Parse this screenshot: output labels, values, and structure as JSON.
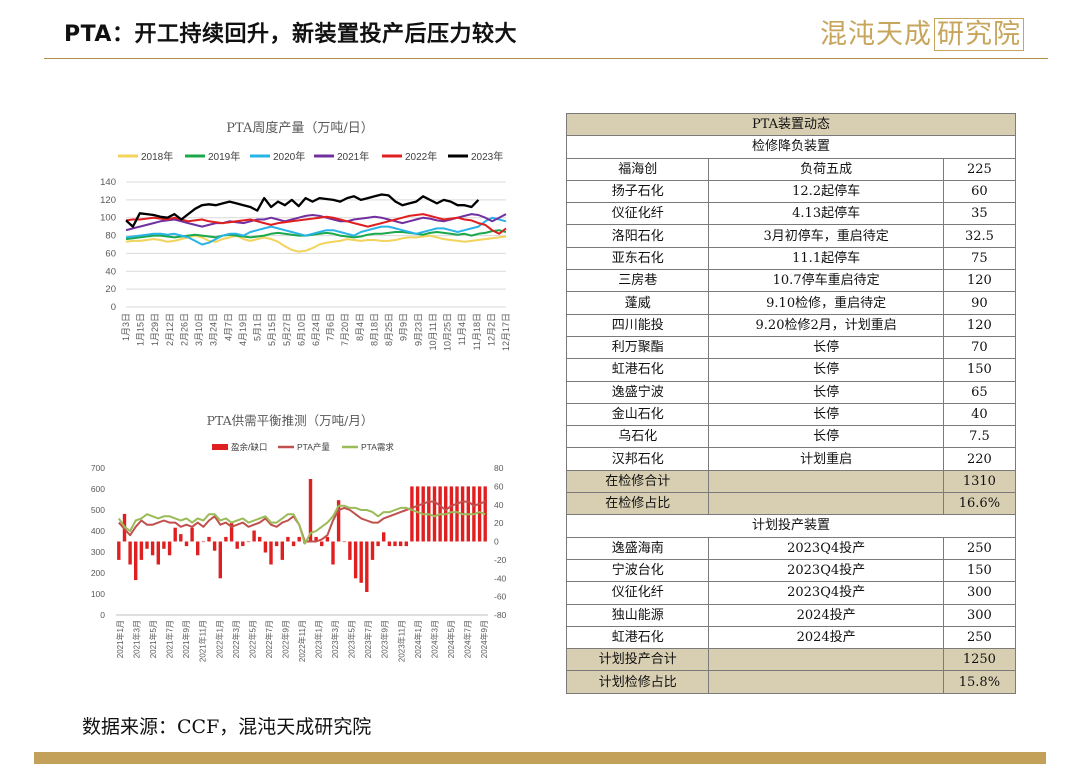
{
  "header": {
    "title": "PTA：开工持续回升，新装置投产后压力较大",
    "logo_text": "混沌天成",
    "logo_box_text": "研究院"
  },
  "source": "数据来源：CCF，混沌天成研究院",
  "colors": {
    "gold": "#c4a15a",
    "y2018": "#f2d35b",
    "y2019": "#1aa84a",
    "y2020": "#2ab3e6",
    "y2021": "#7030a0",
    "y2022": "#e02020",
    "y2023": "#000000",
    "bar": "#e02020",
    "prod": "#c0504d",
    "demand": "#9bbb59"
  },
  "chart_data": [
    {
      "type": "line",
      "title": "PTA周度产量（万吨/日）",
      "ylim": [
        0,
        140
      ],
      "yticks": [
        0,
        20,
        40,
        60,
        80,
        100,
        120,
        140
      ],
      "xticks": [
        "1月3日",
        "1月15日",
        "1月29日",
        "2月12日",
        "2月26日",
        "3月10日",
        "3月24日",
        "4月7日",
        "4月19日",
        "5月1日",
        "5月15日",
        "5月27日",
        "6月10日",
        "6月24日",
        "7月6日",
        "7月20日",
        "8月4日",
        "8月18日",
        "8月25日",
        "9月9日",
        "9月23日",
        "10月11日",
        "10月25日",
        "11月4日",
        "11月18日",
        "12月2日",
        "12月17日"
      ],
      "series": [
        {
          "name": "2018年",
          "values": [
            73,
            74,
            74,
            75,
            76,
            75,
            73,
            74,
            76,
            78,
            80,
            78,
            74,
            73,
            76,
            78,
            80,
            76,
            74,
            76,
            78,
            76,
            73,
            68,
            64,
            62,
            63,
            66,
            70,
            72,
            73,
            74,
            76,
            75,
            74,
            75,
            75,
            74,
            74,
            75,
            77,
            78,
            78,
            79,
            80,
            78,
            76,
            75,
            74,
            73,
            74,
            75,
            76,
            77,
            78,
            79
          ]
        },
        {
          "name": "2019年",
          "values": [
            76,
            77,
            78,
            79,
            80,
            80,
            79,
            78,
            79,
            80,
            81,
            80,
            79,
            78,
            80,
            81,
            80,
            79,
            78,
            79,
            80,
            82,
            83,
            82,
            81,
            80,
            80,
            81,
            82,
            83,
            82,
            80,
            79,
            78,
            79,
            81,
            82,
            82,
            83,
            84,
            84,
            83,
            82,
            81,
            83,
            84,
            83,
            82,
            81,
            82,
            80,
            82,
            83,
            85,
            86,
            84
          ]
        },
        {
          "name": "2020年",
          "values": [
            78,
            79,
            80,
            81,
            82,
            82,
            81,
            82,
            80,
            78,
            74,
            70,
            72,
            76,
            80,
            82,
            82,
            80,
            84,
            86,
            88,
            90,
            88,
            86,
            84,
            82,
            80,
            82,
            84,
            86,
            86,
            84,
            82,
            80,
            84,
            86,
            88,
            90,
            90,
            88,
            86,
            84,
            82,
            84,
            86,
            88,
            88,
            86,
            84,
            86,
            88,
            90,
            96,
            100,
            98,
            96
          ]
        },
        {
          "name": "2021年",
          "values": [
            86,
            88,
            90,
            92,
            94,
            96,
            97,
            98,
            96,
            94,
            92,
            90,
            92,
            94,
            94,
            96,
            95,
            94,
            96,
            98,
            98,
            100,
            98,
            96,
            98,
            100,
            102,
            103,
            102,
            100,
            98,
            96,
            96,
            98,
            99,
            100,
            101,
            100,
            98,
            96,
            94,
            96,
            98,
            100,
            99,
            97,
            96,
            98,
            100,
            102,
            104,
            103,
            100,
            96,
            100,
            104
          ]
        },
        {
          "name": "2022年",
          "values": [
            97,
            98,
            98,
            99,
            100,
            99,
            98,
            100,
            98,
            96,
            97,
            98,
            96,
            95,
            94,
            95,
            96,
            97,
            98,
            96,
            94,
            92,
            94,
            95,
            96,
            97,
            98,
            99,
            100,
            101,
            100,
            98,
            96,
            94,
            92,
            90,
            92,
            94,
            96,
            98,
            100,
            102,
            103,
            104,
            102,
            100,
            98,
            99,
            100,
            98,
            97,
            94,
            92,
            86,
            82,
            88
          ]
        },
        {
          "name": "2023年",
          "values": [
            97,
            90,
            105,
            104,
            103,
            101,
            100,
            104,
            98,
            104,
            110,
            114,
            115,
            114,
            116,
            118,
            116,
            114,
            112,
            108,
            122,
            112,
            118,
            114,
            120,
            113,
            122,
            118,
            122,
            121,
            120,
            118,
            122,
            124,
            120,
            122,
            124,
            126,
            125,
            118,
            114,
            116,
            118,
            124,
            120,
            116,
            120,
            118,
            114,
            114,
            112,
            120
          ]
        }
      ]
    },
    {
      "type": "bar",
      "title": "PTA供需平衡推测（万吨/月）",
      "ylim": [
        0,
        700
      ],
      "y2lim": [
        -80,
        80
      ],
      "yticks": [
        0,
        100,
        200,
        300,
        400,
        500,
        600,
        700
      ],
      "y2ticks": [
        -80,
        -60,
        -40,
        -20,
        0,
        20,
        40,
        60,
        80
      ],
      "xticks": [
        "2021年1月",
        "2021年3月",
        "2021年5月",
        "2021年7月",
        "2021年9月",
        "2021年11月",
        "2022年1月",
        "2022年3月",
        "2022年5月",
        "2022年7月",
        "2022年9月",
        "2022年11月",
        "2023年1月",
        "2023年3月",
        "2023年5月",
        "2023年7月",
        "2023年9月",
        "2023年11月",
        "2024年1月",
        "2024年3月",
        "2024年5月",
        "2024年7月",
        "2024年9月"
      ],
      "legend": [
        "盈余/缺口",
        "PTA产量",
        "PTA需求"
      ],
      "series": [
        {
          "name": "盈余/缺口",
          "axis": "right",
          "values": [
            -20,
            30,
            -25,
            -42,
            -20,
            -8,
            -15,
            -25,
            -8,
            -15,
            15,
            8,
            -5,
            15,
            -15,
            0,
            5,
            -10,
            -40,
            5,
            20,
            -8,
            -5,
            0,
            12,
            5,
            -12,
            -25,
            -5,
            -20,
            5,
            -5,
            5,
            -2,
            68,
            5,
            -5,
            5,
            -25,
            45,
            0,
            -20,
            -40,
            -45,
            -55,
            -20,
            -5,
            10,
            -5,
            -5,
            -5,
            -5,
            60,
            60,
            60,
            60,
            60,
            60,
            60,
            60,
            60,
            60,
            60,
            60,
            60,
            60
          ]
        },
        {
          "name": "PTA产量",
          "axis": "left",
          "values": [
            440,
            410,
            380,
            420,
            450,
            430,
            430,
            440,
            450,
            440,
            440,
            420,
            430,
            420,
            440,
            420,
            450,
            470,
            430,
            440,
            420,
            430,
            440,
            420,
            430,
            440,
            460,
            430,
            420,
            440,
            450,
            470,
            430,
            350,
            350,
            350,
            360,
            380,
            450,
            500,
            510,
            500,
            480,
            460,
            450,
            440,
            440,
            460,
            470,
            480,
            490,
            500,
            510,
            520,
            530,
            540,
            540,
            520,
            500,
            520,
            530,
            540,
            540,
            520,
            530,
            540
          ]
        },
        {
          "name": "PTA需求",
          "axis": "left",
          "values": [
            460,
            420,
            400,
            450,
            460,
            480,
            470,
            460,
            470,
            470,
            460,
            450,
            460,
            440,
            460,
            450,
            480,
            480,
            450,
            460,
            440,
            450,
            460,
            440,
            450,
            460,
            470,
            440,
            440,
            460,
            480,
            480,
            430,
            340,
            390,
            400,
            420,
            440,
            470,
            520,
            520,
            510,
            510,
            500,
            500,
            490,
            470,
            490,
            490,
            500,
            510,
            510,
            500,
            490,
            480,
            480,
            470,
            480,
            480,
            490,
            490,
            480,
            480,
            480,
            490,
            480
          ]
        }
      ]
    }
  ],
  "table": {
    "title": "PTA装置动态",
    "section1_title": "检修降负装置",
    "section1_rows": [
      [
        "福海创",
        "负荷五成",
        "225"
      ],
      [
        "扬子石化",
        "12.2起停车",
        "60"
      ],
      [
        "仪征化纤",
        "4.13起停车",
        "35"
      ],
      [
        "洛阳石化",
        "3月初停车，重启待定",
        "32.5"
      ],
      [
        "亚东石化",
        "11.1起停车",
        "75"
      ],
      [
        "三房巷",
        "10.7停车重启待定",
        "120"
      ],
      [
        "蓬威",
        "9.10检修，重启待定",
        "90"
      ],
      [
        "四川能投",
        "9.20检修2月，计划重启",
        "120"
      ],
      [
        "利万聚酯",
        "长停",
        "70"
      ],
      [
        "虹港石化",
        "长停",
        "150"
      ],
      [
        "逸盛宁波",
        "长停",
        "65"
      ],
      [
        "金山石化",
        "长停",
        "40"
      ],
      [
        "乌石化",
        "长停",
        "7.5"
      ],
      [
        "汉邦石化",
        "计划重启",
        "220"
      ]
    ],
    "section1_sum": [
      [
        "在检修合计",
        "1310"
      ],
      [
        "在检修占比",
        "16.6%"
      ]
    ],
    "section2_title": "计划投产装置",
    "section2_rows": [
      [
        "逸盛海南",
        "2023Q4投产",
        "250"
      ],
      [
        "宁波台化",
        "2023Q4投产",
        "150"
      ],
      [
        "仪征化纤",
        "2023Q4投产",
        "300"
      ],
      [
        "独山能源",
        "2024投产",
        "300"
      ],
      [
        "虹港石化",
        "2024投产",
        "250"
      ]
    ],
    "section2_sum": [
      [
        "计划投产合计",
        "1250"
      ],
      [
        "计划检修占比",
        "15.8%"
      ]
    ]
  }
}
